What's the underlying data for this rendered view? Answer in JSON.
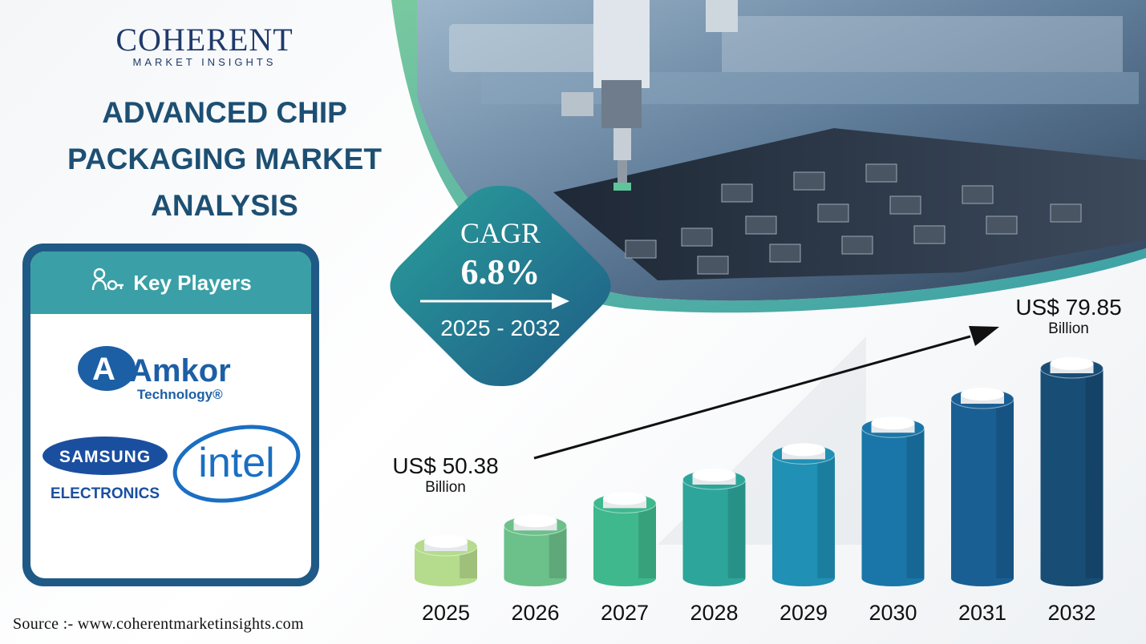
{
  "brand": {
    "name": "COHERENT",
    "subtitle": "MARKET INSIGHTS"
  },
  "title": {
    "line1": "ADVANCED CHIP",
    "line2": "PACKAGING MARKET",
    "line3": "ANALYSIS"
  },
  "key_players": {
    "heading": "Key Players",
    "icon": "handshake-key-icon",
    "logos": [
      {
        "name": "Amkor",
        "sub": "Technology®"
      },
      {
        "name": "SAMSUNG",
        "sub": "ELECTRONICS"
      },
      {
        "name": "intel",
        "sub": ""
      }
    ]
  },
  "cagr": {
    "label": "CAGR",
    "value": "6.8%",
    "period": "2025 - 2032"
  },
  "start_label": {
    "amount": "US$ 50.38",
    "unit": "Billion"
  },
  "end_label": {
    "amount": "US$ 79.85",
    "unit": "Billion"
  },
  "source": "Source :- www.coherentmarketinsights.com",
  "colors": {
    "navy": "#1d4f73",
    "teal": "#3a9fa6",
    "cards_border": "#1f5a86"
  },
  "chart_data": {
    "type": "bar",
    "categories": [
      "2025",
      "2026",
      "2027",
      "2028",
      "2029",
      "2030",
      "2031",
      "2032"
    ],
    "values": [
      50.38,
      53.8,
      57.5,
      61.4,
      65.6,
      70.0,
      74.8,
      79.85
    ],
    "title": "",
    "xlabel": "",
    "ylabel": "US$ Billion",
    "bar_colors": [
      "#b5db8c",
      "#6cc08a",
      "#3fb88e",
      "#2ea59a",
      "#2090b4",
      "#1a76a8",
      "#1a5f94",
      "#184d76"
    ],
    "trend_arrow": true,
    "grid": false
  }
}
